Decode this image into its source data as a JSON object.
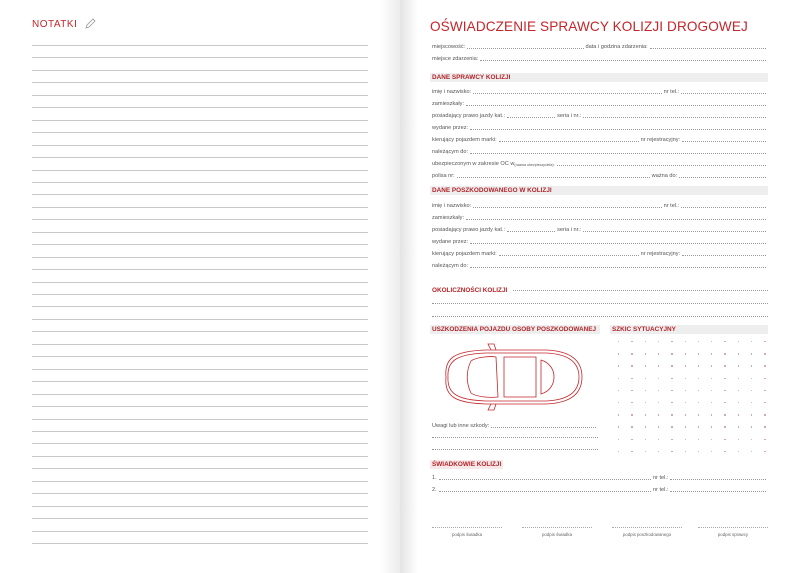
{
  "left_page": {
    "title": "NOTATKI",
    "icon": "pencil-icon",
    "line_count": 41
  },
  "right_page": {
    "title": "OŚWIADCZENIE SPRAWCY KOLIZJI DROGOWEJ",
    "general": {
      "place": "miejscowość:",
      "datetime": "data i godzina zdarzenia:",
      "location": "miejsce zdarzenia:"
    },
    "perpetrator": {
      "header": "DANE SPRAWCY KOLIZJI",
      "name": "imię i nazwisko:",
      "phone": "nr tel.:",
      "address": "zamieszkały:",
      "license": "posiadający prawo jazdy kat.:",
      "series": "seria i nr.:",
      "issued": "wydane przez:",
      "vehicle": "kierujący pojazdem marki:",
      "registration": "nr rejestracyjny:",
      "owner": "należącym do:",
      "insured": "ubezpieczonym w zakresie OC w",
      "insurer_note": "(nazwa ubezpieczyciela):",
      "policy": "polisa nr:",
      "valid": "ważna do:"
    },
    "victim": {
      "header": "DANE POSZKODOWANEGO W KOLIZJI",
      "name": "imię i nazwisko:",
      "phone": "nr tel.:",
      "address": "zamieszkały:",
      "license": "posiadający prawo jazdy kat.:",
      "series": "seria i nr.:",
      "issued": "wydane przez:",
      "vehicle": "kierujący pojazdem marki:",
      "registration": "nr rejestracyjny:",
      "owner": "należącym do:"
    },
    "circumstances": {
      "header": "OKOLICZNOŚCI KOLIZJI"
    },
    "damage": {
      "header": "USZKODZENIA POJAZDU OSOBY POSZKODOWANEJ",
      "remarks": "Uwagi lub inne szkody:"
    },
    "sketch": {
      "header": "SZKIC SYTUACYJNY"
    },
    "witnesses": {
      "header": "ŚWIADKOWIE KOLIZJI",
      "w1": "1.",
      "w2": "2.",
      "phone": "nr tel.:"
    },
    "signatures": [
      "podpis świadka",
      "podpis świadka",
      "podpis poszkodowanego",
      "podpis sprawcy"
    ],
    "accent_color": "#c4262b"
  }
}
